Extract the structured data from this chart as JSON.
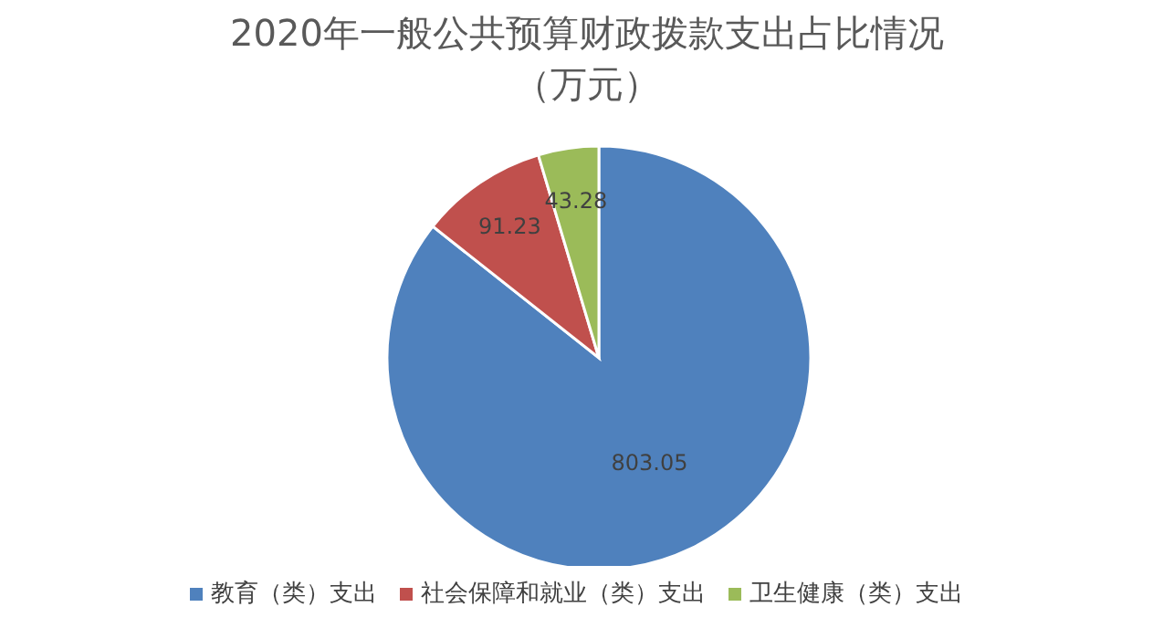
{
  "chart_data": {
    "type": "pie",
    "title": "2020年一般公共预算财政拨款支出占比情况",
    "subtitle": "（万元）",
    "categories": [
      "教育（类）支出",
      "社会保障和就业（类）支出",
      "卫生健康（类）支出"
    ],
    "values": [
      803.05,
      91.23,
      43.28
    ],
    "colors": [
      "#4f81bd",
      "#c0504d",
      "#9bbb59"
    ],
    "data_labels": true,
    "legend": "bottom"
  }
}
